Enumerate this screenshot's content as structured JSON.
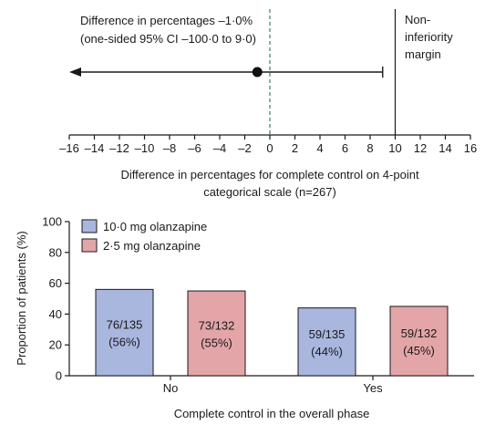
{
  "colors": {
    "series_a": "#a9b6de",
    "series_b": "#e3a5a8",
    "dashed_zero": "#3d7a75",
    "axis": "#1a1a1a"
  },
  "chart_data": [
    {
      "type": "scatter",
      "subtype": "forest-plot",
      "annotation_line1": "Difference in percentages –1·0%",
      "annotation_line2": "(one-sided 95% CI –100·0 to 9·0)",
      "margin_label": [
        "Non-",
        "inferiority",
        "margin"
      ],
      "xlabel_line1": "Difference in percentages for complete control on 4-point",
      "xlabel_line2": "categorical scale (n=267)",
      "xlim": [
        -16,
        16
      ],
      "ticks": [
        -16,
        -14,
        -12,
        -10,
        -8,
        -6,
        -4,
        -2,
        0,
        2,
        4,
        6,
        8,
        10,
        12,
        14,
        16
      ],
      "tick_labels": [
        "–16",
        "–14",
        "–12",
        "–10",
        "–8",
        "–6",
        "–4",
        "–2",
        "0",
        "2",
        "4",
        "6",
        "8",
        "10",
        "12",
        "14",
        "16"
      ],
      "point_estimate": -1.0,
      "ci_lower": -100.0,
      "ci_upper": 9.0,
      "noninferiority_margin": 10,
      "reference_line": 0
    },
    {
      "type": "bar",
      "categories": [
        "No",
        "Yes"
      ],
      "series": [
        {
          "name": "10·0 mg olanzapine",
          "values": [
            56,
            44
          ],
          "labels": [
            [
              "76/135",
              "(56%)"
            ],
            [
              "59/135",
              "(44%)"
            ]
          ]
        },
        {
          "name": "2·5 mg olanzapine",
          "values": [
            55,
            45
          ],
          "labels": [
            [
              "73/132",
              "(55%)"
            ],
            [
              "59/132",
              "(45%)"
            ]
          ]
        }
      ],
      "ylabel": "Proportion of patients (%)",
      "xlabel": "Complete control in the overall phase",
      "ylim": [
        0,
        100
      ],
      "yticks": [
        0,
        20,
        40,
        60,
        80,
        100
      ],
      "legend_position": "top-left",
      "grid": false
    }
  ]
}
